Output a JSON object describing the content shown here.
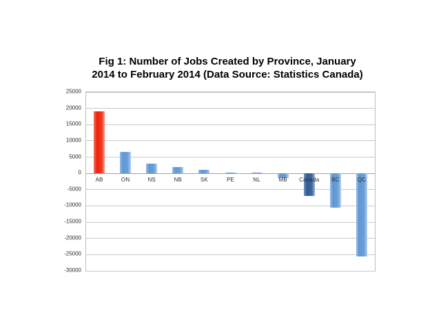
{
  "chart_data": {
    "type": "bar",
    "title": "Fig 1: Number of Jobs Created by Province, January 2014 to February 2014 (Data Source: Statistics Canada)",
    "title_lines": [
      "Fig 1: Number of Jobs Created by Province, January",
      "2014 to February 2014 (Data Source: Statistics Canada)"
    ],
    "categories": [
      "AB",
      "ON",
      "NS",
      "NB",
      "SK",
      "PE",
      "NL",
      "MB",
      "Canada",
      "BC",
      "QC"
    ],
    "values": [
      19000,
      6500,
      3000,
      2000,
      1200,
      300,
      300,
      -1500,
      -7000,
      -10500,
      -25500
    ],
    "xlabel": "",
    "ylabel": "",
    "ylim": [
      -30000,
      25000
    ],
    "yticks": [
      25000,
      20000,
      15000,
      10000,
      5000,
      0,
      -5000,
      -10000,
      -15000,
      -20000,
      -25000,
      -30000
    ],
    "grid": "horizontal",
    "legend": "none",
    "colors": {
      "default_bar": "#5E97D5",
      "bar_edge_light": "#A9CBEC",
      "gridline": "#C9C9C9",
      "zero_axis": "#9E9E9E",
      "plot_border": "#BFBFBF",
      "title_text": "#000000",
      "tick_text": "#2B2B2B"
    },
    "bar_color_overrides": {
      "AB": "#F0250C",
      "Canada": "#2E5B97"
    }
  }
}
